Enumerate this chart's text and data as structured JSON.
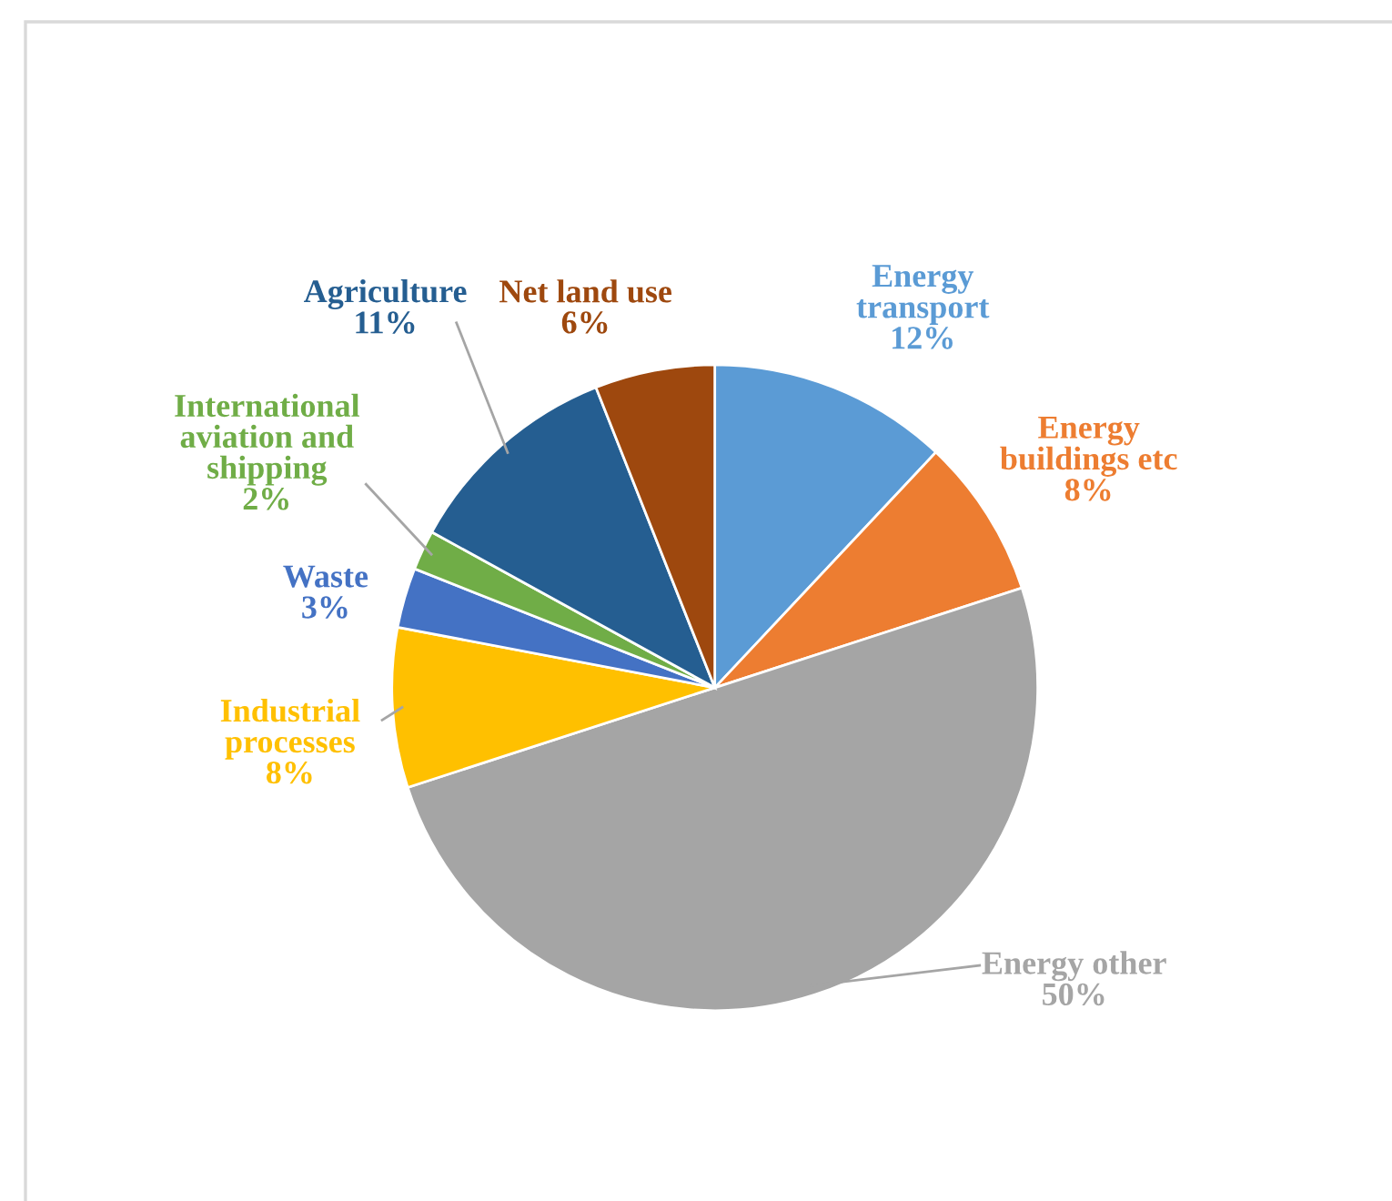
{
  "chart_data": {
    "type": "pie",
    "categories": [
      "Energy\ntransport",
      "Energy\nbuildings etc",
      "Energy other",
      "Industrial\nprocesses",
      "Waste",
      "International\naviation and\nshipping",
      "Agriculture",
      "Net land use"
    ],
    "values": [
      12,
      8,
      50,
      8,
      3,
      2,
      11,
      6
    ],
    "value_labels": [
      "12%",
      "8%",
      "50%",
      "8%",
      "3%",
      "2%",
      "11%",
      "6%"
    ],
    "colors": [
      "#5b9bd5",
      "#ed7d31",
      "#a5a5a5",
      "#ffc000",
      "#4472c4",
      "#70ad47",
      "#255e91",
      "#9e480e"
    ],
    "legend": false
  }
}
